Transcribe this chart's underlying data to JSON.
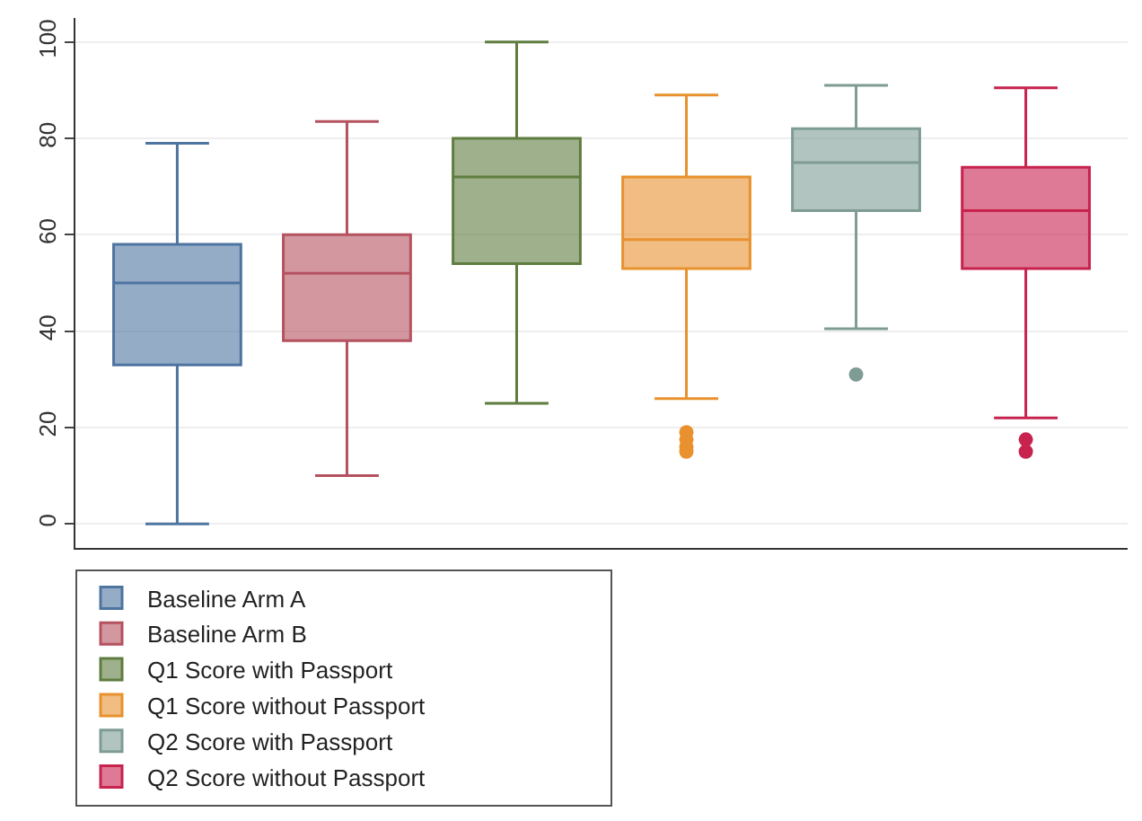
{
  "chart_data": {
    "type": "box",
    "categories": [
      null,
      null,
      null,
      null,
      null,
      null
    ],
    "ylim": [
      -5,
      105
    ],
    "yticks": [
      0,
      20,
      40,
      60,
      80,
      100
    ],
    "grid": "y",
    "legend": "bottom",
    "marker": "circle",
    "tick_labels": "y",
    "series": [
      {
        "name": "Baseline Arm A",
        "color": "#4e74a0",
        "boxes": [
          {
            "low": 0,
            "q1": 33,
            "median": 50,
            "q3": 58,
            "high": 79
          },
          null,
          null,
          null,
          null,
          null
        ]
      },
      {
        "name": "Baseline Arm B",
        "color": "#b5525f",
        "boxes": [
          null,
          {
            "low": 10,
            "q1": 38,
            "median": 52,
            "q3": 60,
            "high": 83.5
          },
          null,
          null,
          null,
          null
        ]
      },
      {
        "name": "Q1 Score with Passport",
        "color": "#5e7d3f",
        "boxes": [
          null,
          null,
          {
            "low": 25,
            "q1": 54,
            "median": 72,
            "q3": 80,
            "high": 100
          },
          null,
          null,
          null
        ]
      },
      {
        "name": "Q1 Score without Passport",
        "color": "#e8912e",
        "boxes": [
          null,
          null,
          null,
          {
            "low": 26,
            "q1": 53,
            "median": 59,
            "q3": 72,
            "high": 89,
            "outliers": [
              19,
              17.5,
              16,
              15
            ]
          },
          null,
          null
        ]
      },
      {
        "name": "Q2 Score with Passport",
        "color": "#7e9c94",
        "boxes": [
          null,
          null,
          null,
          null,
          {
            "low": 40.5,
            "q1": 65,
            "median": 75,
            "q3": 82,
            "high": 91,
            "outliers": [
              31
            ]
          },
          null
        ]
      },
      {
        "name": "Q2 Score without Passport",
        "color": "#c8224e",
        "boxes": [
          null,
          null,
          null,
          null,
          null,
          {
            "low": 22,
            "q1": 53,
            "median": 65,
            "q3": 74,
            "high": 90.5,
            "outliers": [
              17.5,
              15
            ]
          }
        ]
      }
    ]
  }
}
